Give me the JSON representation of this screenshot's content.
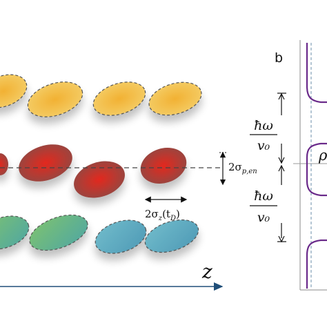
{
  "panel_b": {
    "label": "b",
    "hbar_omega": "ħω",
    "v0": "v₀",
    "rho": "ρ"
  },
  "panel_a": {
    "axis_label": "z",
    "sigma_p_en": "2σ",
    "sigma_p_en_sub": "p,en",
    "sigma_z_main": "2σ",
    "sigma_z_sub": "z",
    "sigma_z_arg": "(t",
    "sigma_z_arg_sub": "D",
    "sigma_z_close": ")"
  },
  "colors": {
    "top_row": "#f0a83c",
    "middle_row": "#c62d2a",
    "bottom_row": "#5fb0a6",
    "curve": "#6a2a8a",
    "axis": "#1f4e79"
  }
}
